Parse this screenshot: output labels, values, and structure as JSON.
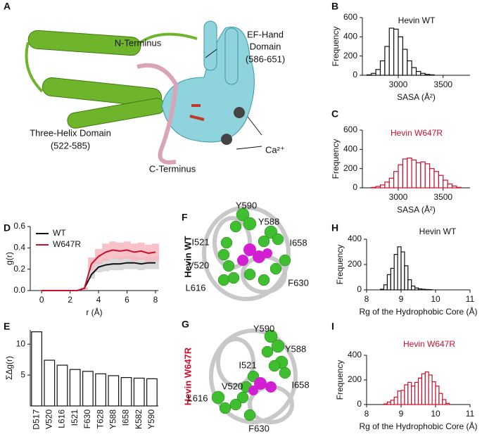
{
  "structures": [
    {
      "panel": "A",
      "labels": [
        "N-Terminus",
        "EF-Hand",
        "Domain",
        "(586-651)",
        "Three-Helix Domain",
        "(522-585)",
        "C-Terminus",
        "Ca²⁺"
      ]
    },
    {
      "panel": "F",
      "side_label": "Hevin WT",
      "residues": [
        "Y590",
        "Y588",
        "I521",
        "I658",
        "V520",
        "L616",
        "F630"
      ]
    },
    {
      "panel": "G",
      "side_label": "Hevin W647R",
      "residues": [
        "Y590",
        "Y588",
        "I521",
        "I658",
        "V520",
        "L616",
        "F630"
      ]
    }
  ],
  "chart_data": [
    {
      "type": "histogram",
      "panel": "B",
      "annotation": "Hevin WT",
      "annotation_color": "#111111",
      "xlabel": "SASA (Å²)",
      "ylabel": "Frequency",
      "color": "#111111",
      "bins": [
        2650,
        2700,
        2750,
        2800,
        2850,
        2900,
        2950,
        3000,
        3050,
        3100,
        3150,
        3200,
        3250,
        3300,
        3350,
        3400
      ],
      "values": [
        5,
        20,
        60,
        150,
        300,
        490,
        480,
        400,
        270,
        150,
        80,
        40,
        20,
        10,
        5
      ],
      "xlim": [
        2600,
        3800
      ],
      "xticks": [
        3000,
        3500
      ],
      "ylim": [
        0,
        600
      ],
      "yticks": [
        0,
        200,
        400,
        600
      ]
    },
    {
      "type": "histogram",
      "panel": "C",
      "annotation": "Hevin W647R",
      "annotation_color": "#c8102e",
      "xlabel": "SASA (Å²)",
      "ylabel": "Frequency",
      "color": "#c8102e",
      "bins": [
        2700,
        2750,
        2800,
        2850,
        2900,
        2950,
        3000,
        3050,
        3100,
        3150,
        3200,
        3250,
        3300,
        3350,
        3400,
        3450,
        3500,
        3550,
        3600,
        3650,
        3700
      ],
      "values": [
        5,
        15,
        30,
        60,
        100,
        170,
        240,
        300,
        310,
        290,
        260,
        270,
        250,
        200,
        170,
        130,
        80,
        40,
        20,
        5
      ],
      "xlim": [
        2600,
        3800
      ],
      "xticks": [
        3000,
        3500
      ],
      "ylim": [
        0,
        600
      ],
      "yticks": [
        0,
        200,
        400,
        600
      ]
    },
    {
      "type": "line",
      "panel": "D",
      "xlabel": "r (Å)",
      "ylabel": "g(r)",
      "x": [
        0,
        0.5,
        1,
        1.5,
        2,
        2.5,
        3,
        3.5,
        4,
        4.5,
        5,
        5.5,
        6,
        6.5,
        7,
        7.5,
        8
      ],
      "series": [
        {
          "name": "WT",
          "color": "#111111",
          "error_color": "#cfcfcf",
          "values": [
            0,
            0,
            0,
            0,
            0,
            0,
            0.02,
            0.15,
            0.22,
            0.24,
            0.25,
            0.25,
            0.26,
            0.26,
            0.25,
            0.26,
            0.26
          ],
          "error": [
            0,
            0,
            0,
            0,
            0,
            0,
            0.01,
            0.04,
            0.05,
            0.06,
            0.06,
            0.06,
            0.06,
            0.06,
            0.06,
            0.06,
            0.06
          ]
        },
        {
          "name": "W647R",
          "color": "#c8102e",
          "error_color": "#f7b3bc",
          "values": [
            0,
            0,
            0,
            0,
            0,
            0,
            0.02,
            0.25,
            0.32,
            0.36,
            0.38,
            0.37,
            0.38,
            0.36,
            0.37,
            0.35,
            0.36
          ],
          "error": [
            0,
            0,
            0,
            0,
            0,
            0,
            0.01,
            0.06,
            0.07,
            0.08,
            0.08,
            0.08,
            0.08,
            0.08,
            0.08,
            0.08,
            0.08
          ]
        }
      ],
      "xlim": [
        -0.8,
        8.2
      ],
      "xticks": [
        0,
        2,
        4,
        6,
        8
      ],
      "ylim": [
        0,
        0.6
      ],
      "yticks": [
        {
          "value": 0,
          "label": "0.0"
        },
        {
          "value": 0.2,
          "label": "0.2"
        },
        {
          "value": 0.4,
          "label": "0.4"
        },
        {
          "value": 0.6,
          "label": "0.6"
        }
      ]
    },
    {
      "type": "bar",
      "panel": "E",
      "ylabel": "ΣΔg(r)",
      "color": "#ffffff",
      "edge_color": "#111111",
      "categories": [
        "D517",
        "V520",
        "L616",
        "I521",
        "F630",
        "T628",
        "Y588",
        "I658",
        "K582",
        "Y590"
      ],
      "values": [
        12,
        7.4,
        6.6,
        5.9,
        5.6,
        5.2,
        4.9,
        4.6,
        4.5,
        4.4
      ],
      "ylim": [
        0,
        12.3
      ],
      "yticks": [
        5,
        10
      ]
    },
    {
      "type": "histogram",
      "panel": "H",
      "annotation": "Hevin WT",
      "annotation_color": "#111111",
      "xlabel": "Rg of the Hydrophobic Core (Å)",
      "ylabel": "Frequency",
      "color": "#111111",
      "bins": [
        8.4,
        8.5,
        8.6,
        8.7,
        8.8,
        8.9,
        9.0,
        9.1,
        9.2,
        9.3,
        9.4,
        9.5,
        9.6,
        9.7,
        9.8,
        9.9
      ],
      "values": [
        5,
        40,
        120,
        170,
        280,
        340,
        300,
        190,
        80,
        30,
        15,
        8,
        5,
        3,
        2
      ],
      "xlim": [
        8,
        11
      ],
      "xticks": [
        8,
        9,
        10,
        11
      ],
      "ylim": [
        0,
        400
      ],
      "yticks": [
        0,
        200,
        400
      ]
    },
    {
      "type": "histogram",
      "panel": "I",
      "annotation": "Hevin W647R",
      "annotation_color": "#c8102e",
      "xlabel": "Rg of the Hydrophobic Core (Å)",
      "ylabel": "Frequency",
      "color": "#c8102e",
      "bins": [
        8.5,
        8.6,
        8.7,
        8.8,
        8.9,
        9.0,
        9.1,
        9.2,
        9.3,
        9.4,
        9.5,
        9.6,
        9.7,
        9.8,
        9.9,
        10.0,
        10.1,
        10.2,
        10.3,
        10.4
      ],
      "values": [
        5,
        20,
        35,
        60,
        110,
        115,
        160,
        180,
        150,
        180,
        215,
        250,
        265,
        240,
        185,
        150,
        90,
        40,
        10
      ],
      "xlim": [
        8,
        11
      ],
      "xticks": [
        8,
        9,
        10,
        11
      ],
      "ylim": [
        0,
        400
      ],
      "yticks": [
        0,
        200,
        400
      ]
    }
  ]
}
